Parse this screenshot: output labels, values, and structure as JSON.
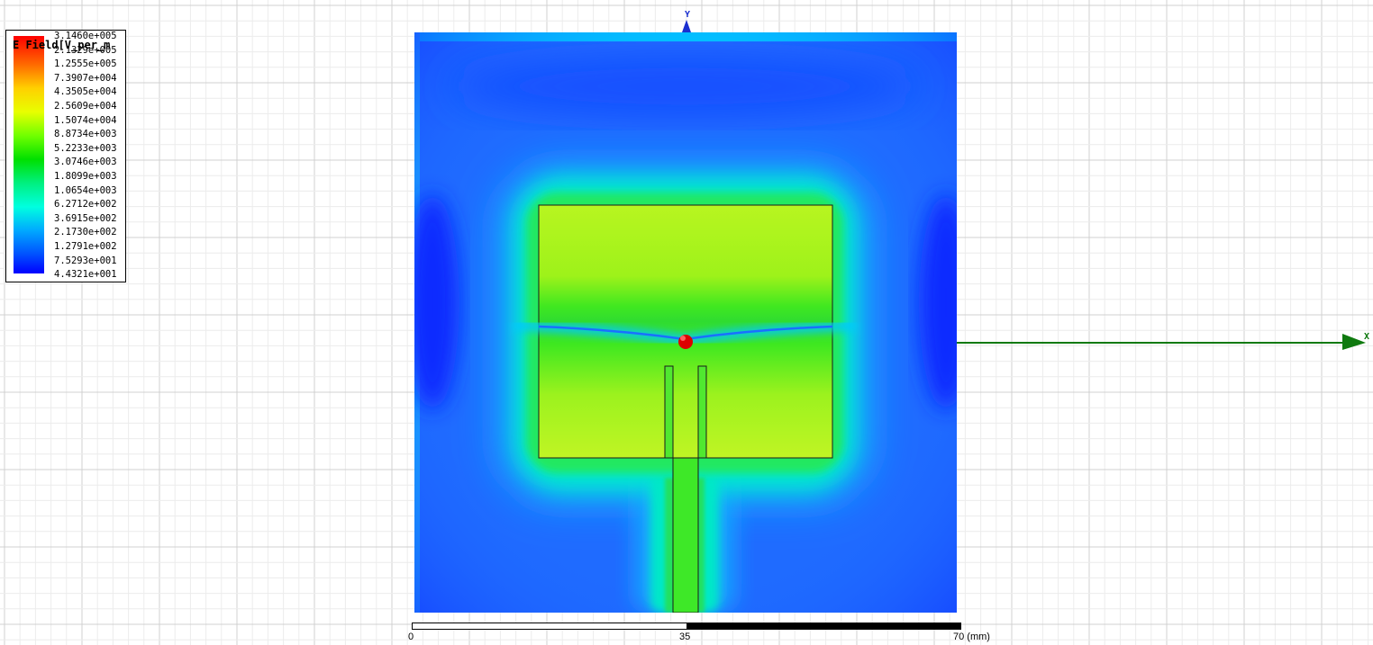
{
  "legend": {
    "title": "E Field[V_per_m",
    "values": [
      "3.1460e+005",
      "2.1329e+005",
      "1.2555e+005",
      "7.3907e+004",
      "4.3505e+004",
      "2.5609e+004",
      "1.5074e+004",
      "8.8734e+003",
      "5.2233e+003",
      "3.0746e+003",
      "1.8099e+003",
      "1.0654e+003",
      "6.2712e+002",
      "3.6915e+002",
      "2.1730e+002",
      "1.2791e+002",
      "7.5293e+001",
      "4.4321e+001"
    ],
    "colors": {
      "max": "#ff0000",
      "high": "#ff9900",
      "upper_mid": "#ffff00",
      "mid": "#00e000",
      "lower_mid": "#00ffe0",
      "low": "#0080ff",
      "min": "#0000ff"
    }
  },
  "axes": {
    "x_label": "X",
    "y_label": "Y",
    "x_color": "#0f7a0f",
    "y_color": "#1a2fd0"
  },
  "scale_bar": {
    "start": "0",
    "mid": "35",
    "end": "70 (mm)"
  },
  "plot_colors": {
    "background_field": "#1f6bff",
    "patch_field": "#b8f520",
    "feed_field": "#40e820",
    "halo": "#00e8d0",
    "feed_point": "#dd0000"
  }
}
